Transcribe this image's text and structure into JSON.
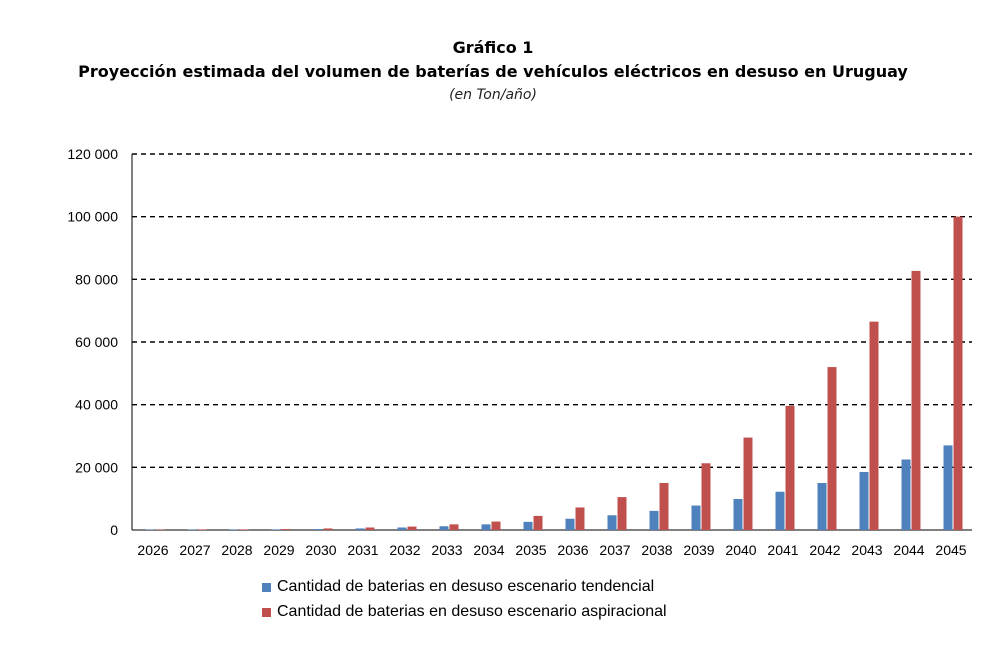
{
  "header": {
    "figure_label": "Gráfico 1",
    "title": "Proyección estimada del volumen de baterías de vehículos eléctricos en desuso en Uruguay",
    "subtitle": "(en Ton/año)"
  },
  "chart_data": {
    "type": "bar",
    "title": "Proyección estimada del volumen de baterías de vehículos eléctricos en desuso en Uruguay",
    "subtitle": "(en Ton/año)",
    "xlabel": "",
    "ylabel": "",
    "ylim": [
      0,
      120000
    ],
    "yticks": [
      0,
      20000,
      40000,
      60000,
      80000,
      100000,
      120000
    ],
    "ytick_labels": [
      "0",
      "20 000",
      "40 000",
      "60 000",
      "80 000",
      "100 000",
      "120 000"
    ],
    "grid": "dashed horizontal",
    "legend_position": "bottom",
    "categories": [
      "2026",
      "2027",
      "2028",
      "2029",
      "2030",
      "2031",
      "2032",
      "2033",
      "2034",
      "2035",
      "2036",
      "2037",
      "2038",
      "2039",
      "2040",
      "2041",
      "2042",
      "2043",
      "2044",
      "2045"
    ],
    "series": [
      {
        "name": "Cantidad de baterias en desuso escenario tendencial",
        "color": "#4f81bd",
        "values": [
          20,
          50,
          100,
          200,
          300,
          500,
          800,
          1200,
          1800,
          2600,
          3600,
          4700,
          6100,
          7800,
          9900,
          12200,
          15000,
          18500,
          22500,
          27000
        ]
      },
      {
        "name": "Cantidad de baterias en desuso escenario aspiracional",
        "color": "#c0504d",
        "values": [
          20,
          60,
          150,
          300,
          500,
          800,
          1100,
          1800,
          2700,
          4500,
          7200,
          10500,
          15000,
          21300,
          29500,
          39600,
          52000,
          66500,
          82700,
          100000
        ]
      }
    ]
  }
}
